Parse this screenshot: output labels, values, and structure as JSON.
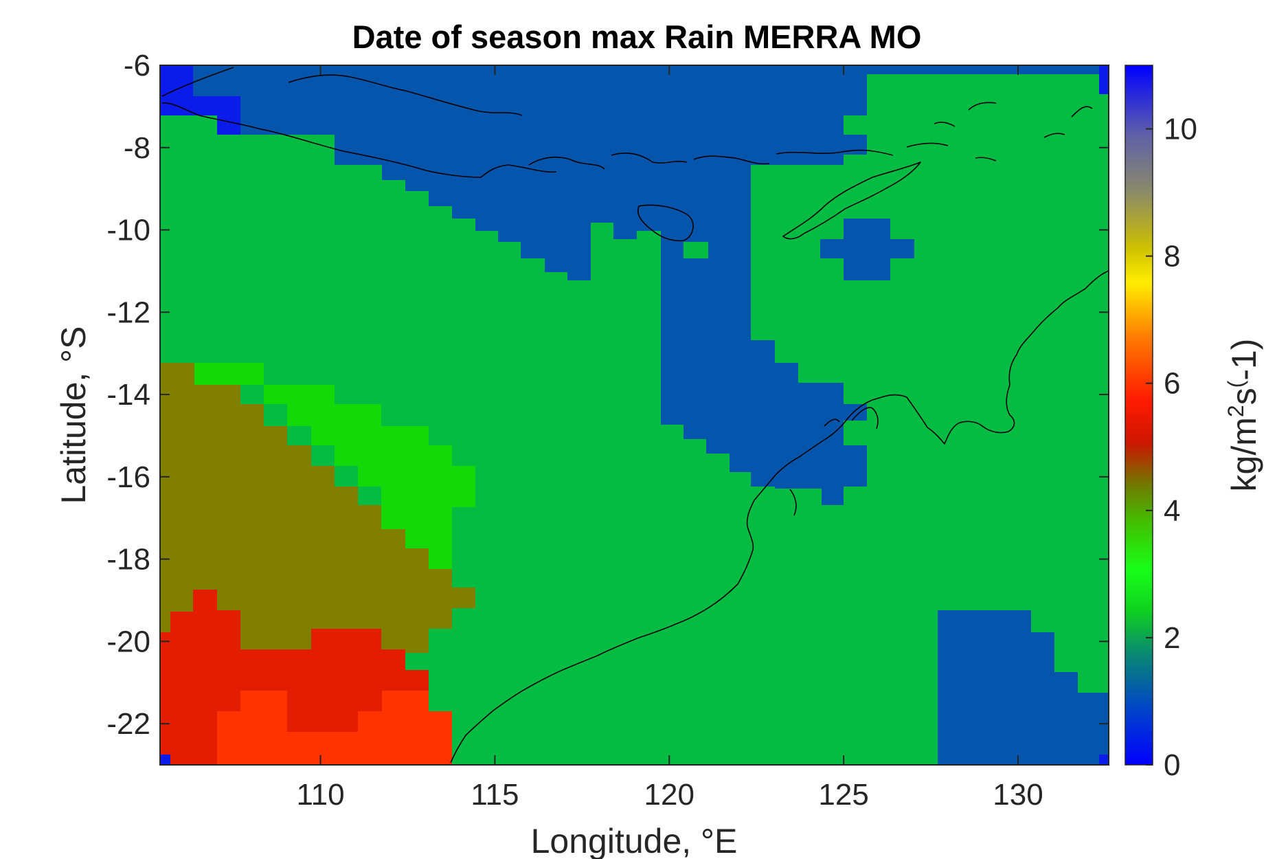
{
  "chart_data": {
    "type": "heatmap",
    "title": "Date of season max Rain MERRA MO",
    "xlabel": "Longitude, °E",
    "ylabel": "Latitude, °S",
    "colorbar_label_parts": [
      "kg/m",
      "2",
      "s",
      "(",
      "-1)"
    ],
    "xlim": [
      105.4,
      132.6
    ],
    "ylim": [
      -23,
      -6
    ],
    "xticks": [
      110,
      115,
      120,
      125,
      130
    ],
    "xticklabels": [
      "110",
      "115",
      "120",
      "125",
      "130"
    ],
    "yticks": [
      -6,
      -8,
      -10,
      -12,
      -14,
      -16,
      -18,
      -20,
      -22
    ],
    "yticklabels": [
      "-6",
      "-8",
      "-10",
      "-12",
      "-14",
      "-16",
      "-18",
      "-20",
      "-22"
    ],
    "clim": [
      0,
      11
    ],
    "cticks": [
      0,
      2,
      4,
      6,
      8,
      10
    ],
    "cticklabels": [
      "0",
      "2",
      "4",
      "6",
      "8",
      "10"
    ],
    "colormap": "jet-like, blue (0) → green → yellow (8) → red → grey → blue (11)",
    "grid": false,
    "cell_size_deg": [
      0.667,
      0.5
    ],
    "background_value": 2.0,
    "regions": [
      {
        "value": 0.8,
        "lon_range": [
          105.4,
          132.6
        ],
        "lat_range": [
          -7.8,
          -6
        ],
        "note": "northern blue strip (Java Sea)"
      },
      {
        "value": 0.8,
        "lon_range": [
          112,
          122.3
        ],
        "lat_range": [
          -10.2,
          -7.8
        ],
        "note": "south of Java / Lesser Sunda"
      },
      {
        "value": 0.8,
        "lon_range": [
          119.7,
          122.3
        ],
        "lat_range": [
          -16.7,
          -10.2
        ],
        "note": "Timor Sea tongue"
      },
      {
        "value": 0.8,
        "lon_range": [
          122.3,
          125.8
        ],
        "lat_range": [
          -16.3,
          -13.5
        ],
        "note": "off Kimberley coast"
      },
      {
        "value": 0.8,
        "lon_range": [
          125.1,
          127
        ],
        "lat_range": [
          -11.2,
          -9.8
        ],
        "note": "Timor Sea patch"
      },
      {
        "value": 0.8,
        "lon_range": [
          127.7,
          132.6
        ],
        "lat_range": [
          -23,
          -19.3
        ],
        "note": "inland NT block"
      },
      {
        "value": 0.2,
        "lon_range": [
          105.4,
          107.6
        ],
        "lat_range": [
          -7.8,
          -6
        ],
        "note": "NW corner"
      },
      {
        "value": 2.7,
        "lon_range": [
          106.7,
          114.3
        ],
        "lat_range": [
          -18.2,
          -13.2
        ],
        "note": "bright green band"
      },
      {
        "value": 4.3,
        "lon_range": [
          105.4,
          114.3
        ],
        "lat_range": [
          -21.2,
          -13.2
        ],
        "note": "olive region"
      },
      {
        "value": 5.6,
        "lon_range": [
          105.4,
          113
        ],
        "lat_range": [
          -23,
          -18.7
        ],
        "note": "dark red region"
      },
      {
        "value": 6.2,
        "lon_range": [
          106.7,
          113.7
        ],
        "lat_range": [
          -23,
          -21.2
        ],
        "note": "bright red region"
      }
    ]
  }
}
